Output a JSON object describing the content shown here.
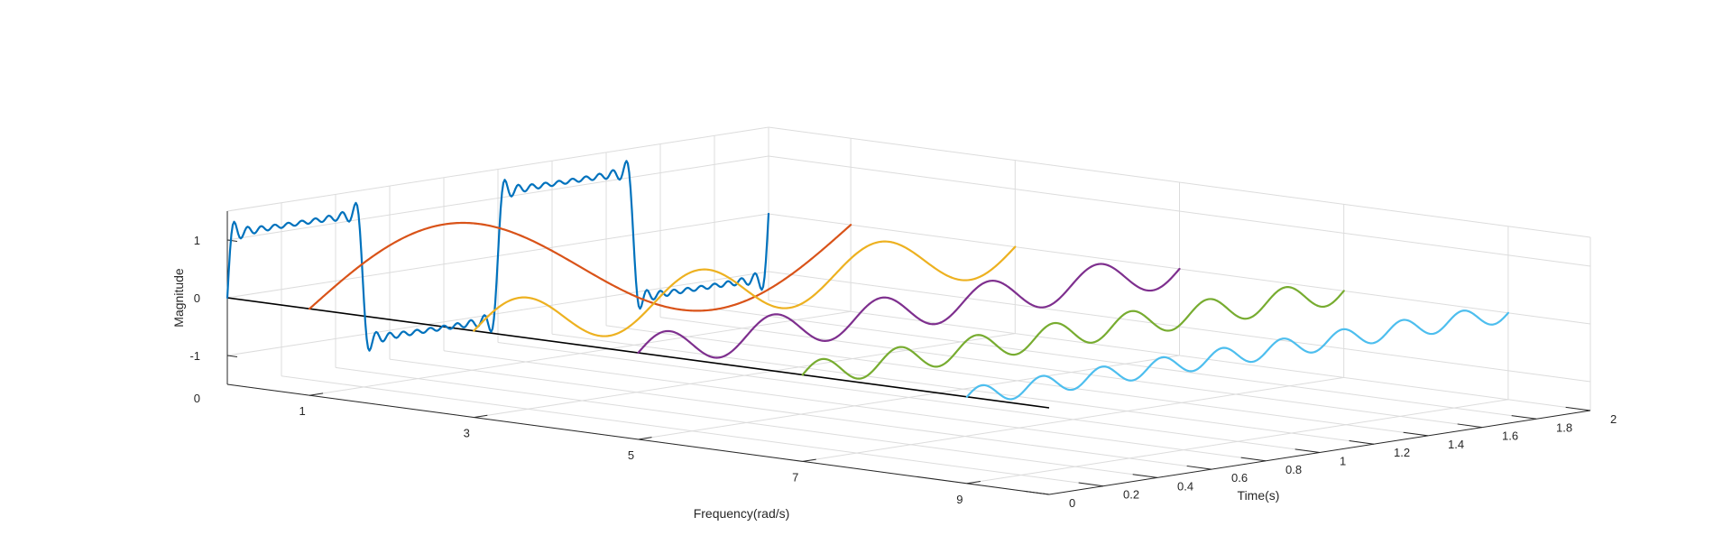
{
  "chart_data": {
    "type": "line",
    "subtype": "3d-line-waterfall",
    "title": "",
    "xlabel": "Frequency(rad/s)",
    "ylabel": "Time(s)",
    "zlabel": "Magnitude",
    "xlim": [
      0,
      10
    ],
    "ylim": [
      0,
      2
    ],
    "zlim": [
      -1.5,
      1.5
    ],
    "x_ticks": [
      "1",
      "3",
      "5",
      "7",
      "9"
    ],
    "y_ticks": [
      "0",
      "0.2",
      "0.4",
      "0.6",
      "0.8",
      "1",
      "1.2",
      "1.4",
      "1.6",
      "1.8",
      "2"
    ],
    "z_ticks": [
      "-1",
      "0",
      "1"
    ],
    "z_floor_tick": "0",
    "grid": true,
    "legend": "none",
    "series": [
      {
        "frequency": 0,
        "waveform": "square (Fourier partial sum)",
        "color": "#0072BD",
        "t": [
          0,
          2
        ],
        "amplitude": 1.1,
        "period": 1
      },
      {
        "frequency": 1,
        "waveform": "sine",
        "color": "#D95319",
        "t": [
          0,
          2
        ],
        "amplitude": 1.1,
        "cycles": 1
      },
      {
        "frequency": 3,
        "waveform": "sine",
        "color": "#EDB120",
        "t": [
          0,
          2
        ],
        "amplitude": 0.45,
        "cycles": 3
      },
      {
        "frequency": 5,
        "waveform": "sine",
        "color": "#7E2F8E",
        "t": [
          0,
          2
        ],
        "amplitude": 0.3,
        "cycles": 5
      },
      {
        "frequency": 7,
        "waveform": "sine",
        "color": "#77AC30",
        "t": [
          0,
          2
        ],
        "amplitude": 0.22,
        "cycles": 7
      },
      {
        "frequency": 9,
        "waveform": "sine",
        "color": "#4DBEEE",
        "t": [
          0,
          2
        ],
        "amplitude": 0.16,
        "cycles": 9
      }
    ],
    "baseline": {
      "from_frequency": 0,
      "to_frequency": 10,
      "time": 0,
      "magnitude": 0,
      "color": "#000000"
    }
  }
}
